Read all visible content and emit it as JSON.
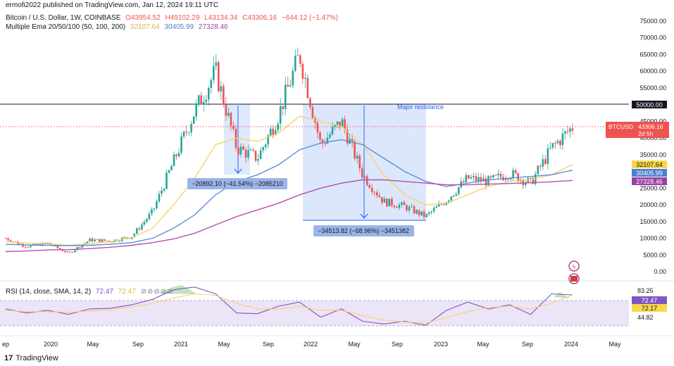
{
  "publisher_line": "ermofi2022 published on TradingView.com, Jan 12, 2024 19:11 UTC",
  "symbol": {
    "name": "Bitcoin / U.S. Dollar, 1W, COINBASE",
    "o": "O43954.52",
    "h": "H49102.29",
    "l": "L43134.34",
    "c": "C43306.16",
    "chg": "−644.12 (−1.47%)"
  },
  "ema": {
    "label": "Multiple Ema 20/50/100 (50, 100, 200)",
    "v1": "32107.64",
    "v2": "30405.99",
    "v3": "27328.46"
  },
  "rsi": {
    "label": "RSI (14, close, SMA, 14, 2)",
    "v1": "72.47",
    "v2": "72.47"
  },
  "footer": {
    "logo": "TradingView"
  },
  "colors": {
    "up": "#26a69a",
    "down": "#ef5350",
    "ema50": "#f5d36b",
    "ema100": "#5b8fd6",
    "ema200": "#b54fb3",
    "box": "#d6e3fb",
    "rsi": "#7e57c2",
    "accent": "#2962ff"
  },
  "chart_data": [
    {
      "type": "line",
      "title": "Bitcoin / U.S. Dollar, 1W, COINBASE",
      "y_ticks": [
        "75000.00",
        "70000.00",
        "65000.00",
        "60000.00",
        "55000.00",
        "50000.00",
        "45000.00",
        "40000.00",
        "35000.00",
        "30000.00",
        "25000.00",
        "20000.00",
        "15000.00",
        "10000.00",
        "5000.00",
        "0.00"
      ],
      "ylim": [
        0,
        75000
      ],
      "x_ticks": [
        "ep",
        "2020",
        "May",
        "Sep",
        "2021",
        "May",
        "Sep",
        "2022",
        "May",
        "Sep",
        "2023",
        "May",
        "Sep",
        "2024",
        "May"
      ],
      "price_tag": {
        "label": "BTCUSD",
        "value": "43306.16",
        "sub": "2d 5h"
      },
      "horizontal_line": {
        "value": 50000,
        "label": "50000.00"
      },
      "resistance_label": "Major resistance",
      "ema_tags": [
        "32107.64",
        "30405.99",
        "27328.46"
      ],
      "annotations": [
        "−20892.10 (−41.54%) −2085210",
        "−34513.82 (−68.96%) −3451382"
      ],
      "series": [
        {
          "name": "BTCUSD",
          "x": [
            "2019-09",
            "2019-11",
            "2020-01",
            "2020-03",
            "2020-05",
            "2020-07",
            "2020-09",
            "2020-11",
            "2021-01",
            "2021-02",
            "2021-04",
            "2021-05",
            "2021-07",
            "2021-09",
            "2021-11",
            "2022-01",
            "2022-03",
            "2022-05",
            "2022-07",
            "2022-09",
            "2022-11",
            "2023-01",
            "2023-03",
            "2023-05",
            "2023-07",
            "2023-09",
            "2023-11",
            "2024-01"
          ],
          "values": [
            10000,
            7500,
            8500,
            5500,
            9500,
            9200,
            10500,
            18000,
            33000,
            48000,
            60000,
            37000,
            34000,
            47000,
            65000,
            38000,
            45000,
            29000,
            21000,
            19500,
            16500,
            21500,
            28000,
            27000,
            29500,
            26500,
            37000,
            43306
          ]
        },
        {
          "name": "EMA 50",
          "values": [
            9000,
            8600,
            8300,
            7900,
            8400,
            9000,
            10200,
            13000,
            20000,
            28000,
            38000,
            40000,
            39000,
            41500,
            46500,
            45000,
            43500,
            38000,
            29000,
            23000,
            20000,
            20500,
            23000,
            25500,
            27000,
            27500,
            29000,
            32107
          ]
        },
        {
          "name": "EMA 100",
          "values": [
            8200,
            8000,
            7900,
            7800,
            7900,
            8200,
            8700,
            10000,
            13000,
            17000,
            23000,
            27000,
            29000,
            32000,
            36500,
            38500,
            39500,
            38000,
            34000,
            30000,
            27000,
            25500,
            26500,
            27500,
            28000,
            28500,
            29000,
            30406
          ]
        },
        {
          "name": "EMA 200",
          "values": [
            6000,
            6200,
            6500,
            6600,
            6900,
            7300,
            7900,
            8700,
            9800,
            11500,
            14000,
            16500,
            18500,
            20500,
            23000,
            25000,
            26500,
            27500,
            27500,
            27000,
            26500,
            26000,
            26000,
            26200,
            26400,
            26600,
            26900,
            27328
          ]
        }
      ]
    },
    {
      "type": "line",
      "title": "RSI (14, close, SMA, 14, 2)",
      "y_ticks": [
        "83.25",
        "72.47",
        "72.17",
        "44.82"
      ],
      "series": [
        {
          "name": "RSI",
          "values": [
            52,
            46,
            50,
            44,
            52,
            53,
            58,
            66,
            80,
            84,
            74,
            46,
            45,
            56,
            62,
            40,
            52,
            34,
            30,
            34,
            28,
            50,
            62,
            52,
            58,
            44,
            74,
            72.47
          ]
        },
        {
          "name": "SMA",
          "values": [
            50,
            48,
            48,
            47,
            49,
            51,
            55,
            60,
            68,
            74,
            72,
            60,
            52,
            52,
            56,
            50,
            50,
            42,
            36,
            33,
            31,
            40,
            48,
            54,
            56,
            52,
            60,
            72.17
          ]
        }
      ]
    }
  ]
}
